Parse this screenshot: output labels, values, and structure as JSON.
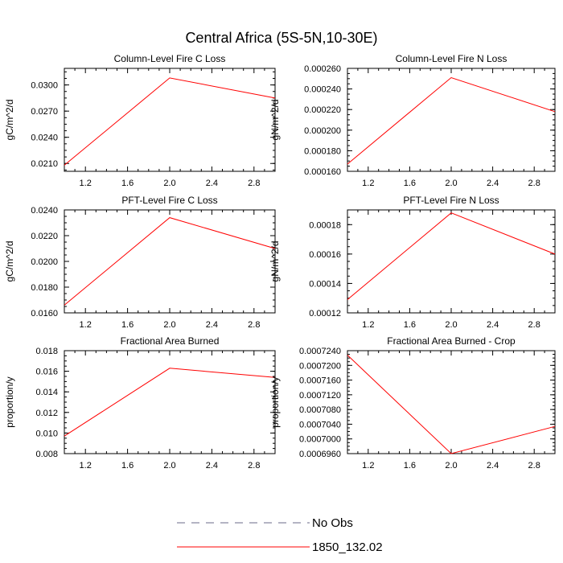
{
  "title": "Central Africa (5S-5N,10-30E)",
  "chart_data": [
    {
      "type": "line",
      "title": "Column-Level Fire C Loss",
      "ylabel": "gC/m^2/d",
      "xlim": [
        1,
        3
      ],
      "ylim": [
        0.0201,
        0.0319
      ],
      "xticks": [
        "1.2",
        "1.6",
        "2.0",
        "2.4",
        "2.8"
      ],
      "yticks": [
        "0.0210",
        "0.0240",
        "0.0270",
        "0.0300"
      ],
      "series": [
        {
          "name": "1850_132.02",
          "x": [
            1,
            2,
            3
          ],
          "y": [
            0.0208,
            0.0308,
            0.0285
          ]
        }
      ]
    },
    {
      "type": "line",
      "title": "Column-Level Fire N Loss",
      "ylabel": "gN/m^2/d",
      "xlim": [
        1,
        3
      ],
      "ylim": [
        0.00016,
        0.00026
      ],
      "xticks": [
        "1.2",
        "1.6",
        "2.0",
        "2.4",
        "2.8"
      ],
      "yticks": [
        "0.000160",
        "0.000180",
        "0.000200",
        "0.000220",
        "0.000240",
        "0.000260"
      ],
      "series": [
        {
          "name": "1850_132.02",
          "x": [
            1,
            2,
            3
          ],
          "y": [
            0.000167,
            0.000251,
            0.000218
          ]
        }
      ]
    },
    {
      "type": "line",
      "title": "PFT-Level Fire C Loss",
      "ylabel": "gC/m^2/d",
      "xlim": [
        1,
        3
      ],
      "ylim": [
        0.016,
        0.024
      ],
      "xticks": [
        "1.2",
        "1.6",
        "2.0",
        "2.4",
        "2.8"
      ],
      "yticks": [
        "0.0160",
        "0.0180",
        "0.0200",
        "0.0220",
        "0.0240"
      ],
      "series": [
        {
          "name": "1850_132.02",
          "x": [
            1,
            2,
            3
          ],
          "y": [
            0.0166,
            0.0234,
            0.021
          ]
        }
      ]
    },
    {
      "type": "line",
      "title": "PFT-Level Fire N Loss",
      "ylabel": "gN/m^2/d",
      "xlim": [
        1,
        3
      ],
      "ylim": [
        0.00012,
        0.00019
      ],
      "xticks": [
        "1.2",
        "1.6",
        "2.0",
        "2.4",
        "2.8"
      ],
      "yticks": [
        "0.00012",
        "0.00014",
        "0.00016",
        "0.00018"
      ],
      "series": [
        {
          "name": "1850_132.02",
          "x": [
            1,
            2,
            3
          ],
          "y": [
            0.000129,
            0.000188,
            0.00016
          ]
        }
      ]
    },
    {
      "type": "line",
      "title": "Fractional Area Burned",
      "ylabel": "proportion/y",
      "xlim": [
        1,
        3
      ],
      "ylim": [
        0.008,
        0.018
      ],
      "xticks": [
        "1.2",
        "1.6",
        "2.0",
        "2.4",
        "2.8"
      ],
      "yticks": [
        "0.008",
        "0.010",
        "0.012",
        "0.014",
        "0.016",
        "0.018"
      ],
      "series": [
        {
          "name": "1850_132.02",
          "x": [
            1,
            2,
            3
          ],
          "y": [
            0.0097,
            0.0163,
            0.0154
          ]
        }
      ]
    },
    {
      "type": "line",
      "title": "Fractional Area Burned - Crop",
      "ylabel": "proportion/y",
      "xlim": [
        1,
        3
      ],
      "ylim": [
        0.000696,
        0.000724
      ],
      "xticks": [
        "1.2",
        "1.6",
        "2.0",
        "2.4",
        "2.8"
      ],
      "yticks": [
        "0.0006960",
        "0.0007000",
        "0.0007040",
        "0.0007080",
        "0.0007120",
        "0.0007160",
        "0.0007200",
        "0.0007240"
      ],
      "series": [
        {
          "name": "1850_132.02",
          "x": [
            1,
            2,
            3
          ],
          "y": [
            0.0007228,
            0.000696,
            0.0007034
          ]
        }
      ]
    }
  ],
  "legend": {
    "items": [
      {
        "label": "No Obs",
        "color": "#6a6a8a",
        "style": "dashed"
      },
      {
        "label": "1850_132.02",
        "color": "#ff0000",
        "style": "solid"
      }
    ]
  },
  "colors": {
    "series": "#ff0000",
    "axis": "#000000"
  }
}
